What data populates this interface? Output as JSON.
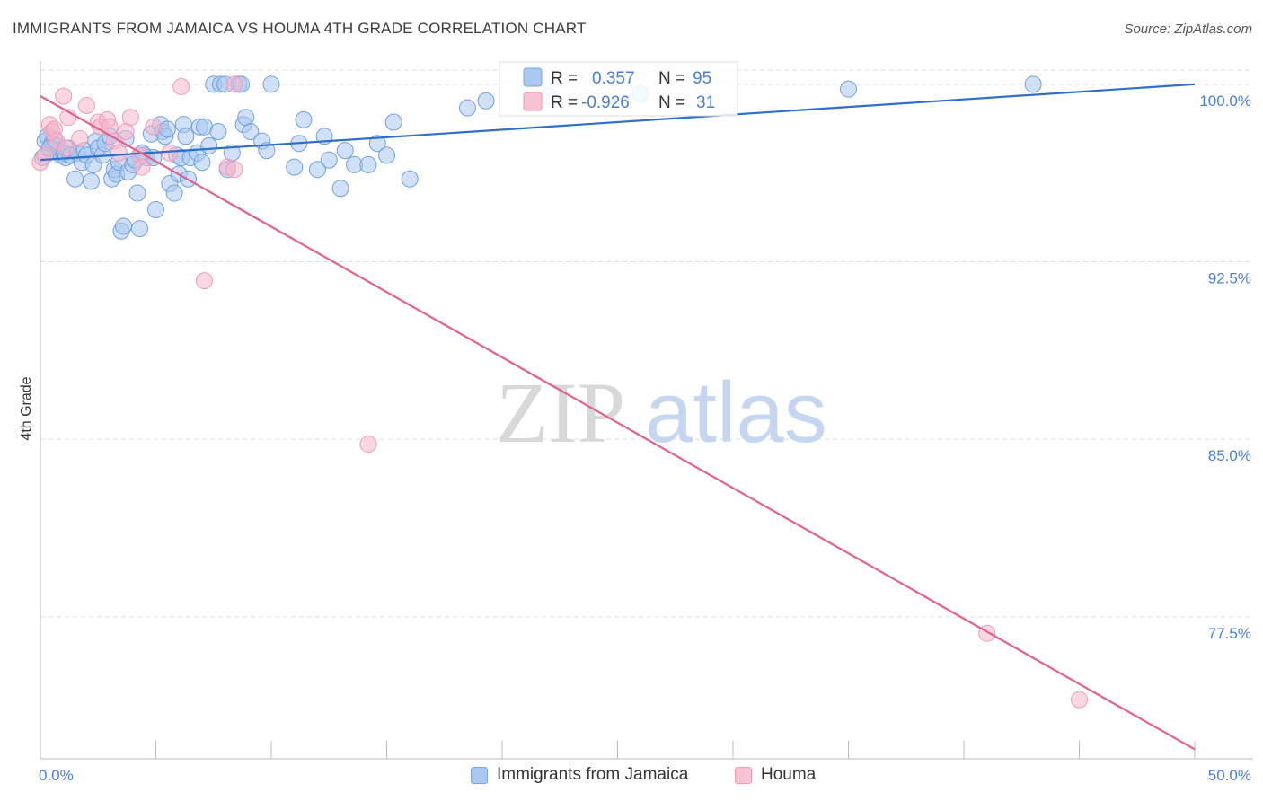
{
  "title": "IMMIGRANTS FROM JAMAICA VS HOUMA 4TH GRADE CORRELATION CHART",
  "source": "Source: ZipAtlas.com",
  "watermark": {
    "zip": "ZIP",
    "atlas": "atlas"
  },
  "colors": {
    "blue": "#4a7fd0",
    "blue_fill": "#aac8f0",
    "blue_line": "#2f6fc9",
    "pink_fill": "#f6b6cc",
    "pink_line": "#e0608e",
    "grid": "#dddddd"
  },
  "legend": {
    "r_label": "R =",
    "n_label": "N =",
    "rows": [
      {
        "r": "0.357",
        "n": "95"
      },
      {
        "r": "-0.926",
        "n": "31"
      }
    ]
  },
  "bottom_legend": {
    "blue": "Immigrants from Jamaica",
    "pink": "Houma"
  },
  "chart_data": {
    "type": "scatter",
    "xlabel": "",
    "ylabel": "4th Grade",
    "xlim": [
      0,
      50
    ],
    "ylim": [
      71.5,
      100.6
    ],
    "x_tick_labels": [
      "0.0%",
      "50.0%"
    ],
    "y_ticks": [
      100.0,
      92.5,
      85.0,
      77.5
    ],
    "y_tick_labels": [
      "100.0%",
      "92.5%",
      "85.0%",
      "77.5%"
    ],
    "grid": true,
    "series": [
      {
        "name": "Immigrants from Jamaica",
        "trend": {
          "x": [
            0,
            50
          ],
          "y": [
            96.8,
            100.0
          ]
        },
        "points": [
          [
            0.2,
            97.6
          ],
          [
            0.3,
            97.8
          ],
          [
            0.5,
            97.5
          ],
          [
            0.6,
            97.7
          ],
          [
            0.7,
            97.4
          ],
          [
            0.8,
            97.2
          ],
          [
            0.9,
            97.0
          ],
          [
            1.0,
            97.1
          ],
          [
            1.1,
            96.9
          ],
          [
            1.2,
            97.3
          ],
          [
            1.3,
            97.0
          ],
          [
            1.5,
            96.0
          ],
          [
            1.6,
            97.1
          ],
          [
            1.8,
            96.7
          ],
          [
            1.9,
            97.2
          ],
          [
            2.0,
            97.0
          ],
          [
            2.2,
            95.9
          ],
          [
            2.3,
            96.6
          ],
          [
            2.4,
            97.6
          ],
          [
            2.5,
            97.3
          ],
          [
            2.7,
            97.0
          ],
          [
            2.8,
            97.5
          ],
          [
            3.0,
            97.8
          ],
          [
            3.1,
            96.0
          ],
          [
            3.2,
            96.4
          ],
          [
            3.3,
            96.2
          ],
          [
            3.4,
            96.7
          ],
          [
            3.5,
            93.8
          ],
          [
            3.6,
            94.0
          ],
          [
            3.7,
            97.7
          ],
          [
            3.8,
            96.3
          ],
          [
            4.0,
            96.6
          ],
          [
            4.1,
            96.8
          ],
          [
            4.2,
            95.4
          ],
          [
            4.3,
            93.9
          ],
          [
            4.5,
            97.0
          ],
          [
            4.6,
            96.9
          ],
          [
            4.8,
            97.9
          ],
          [
            4.9,
            96.9
          ],
          [
            5.0,
            94.7
          ],
          [
            5.2,
            98.3
          ],
          [
            5.3,
            98.0
          ],
          [
            5.4,
            97.8
          ],
          [
            5.5,
            98.1
          ],
          [
            5.6,
            95.8
          ],
          [
            5.8,
            95.4
          ],
          [
            5.9,
            97.0
          ],
          [
            6.0,
            96.2
          ],
          [
            6.1,
            96.9
          ],
          [
            6.2,
            98.3
          ],
          [
            6.3,
            97.8
          ],
          [
            6.4,
            96.0
          ],
          [
            6.5,
            96.9
          ],
          [
            6.8,
            97.1
          ],
          [
            6.9,
            98.2
          ],
          [
            7.0,
            96.7
          ],
          [
            7.1,
            98.2
          ],
          [
            7.3,
            97.4
          ],
          [
            7.5,
            100.0
          ],
          [
            7.7,
            98.0
          ],
          [
            7.8,
            100.0
          ],
          [
            8.0,
            100.0
          ],
          [
            8.1,
            96.4
          ],
          [
            8.3,
            97.1
          ],
          [
            8.6,
            100.0
          ],
          [
            8.7,
            100.0
          ],
          [
            8.8,
            98.3
          ],
          [
            8.9,
            98.6
          ],
          [
            9.1,
            98.0
          ],
          [
            9.6,
            97.6
          ],
          [
            9.8,
            97.2
          ],
          [
            10.0,
            100.0
          ],
          [
            11.0,
            96.5
          ],
          [
            11.2,
            97.5
          ],
          [
            11.4,
            98.5
          ],
          [
            12.0,
            96.4
          ],
          [
            12.3,
            97.8
          ],
          [
            12.5,
            96.8
          ],
          [
            13.0,
            95.6
          ],
          [
            13.2,
            97.2
          ],
          [
            13.6,
            96.6
          ],
          [
            14.2,
            96.6
          ],
          [
            14.6,
            97.5
          ],
          [
            15.0,
            97.0
          ],
          [
            15.3,
            98.4
          ],
          [
            16.0,
            96.0
          ],
          [
            18.5,
            99.0
          ],
          [
            19.3,
            99.3
          ],
          [
            22.0,
            99.5
          ],
          [
            26.0,
            99.6
          ],
          [
            35.0,
            99.8
          ],
          [
            43.0,
            100.0
          ],
          [
            0.1,
            96.9
          ],
          [
            0.4,
            97.3
          ],
          [
            4.4,
            97.1
          ]
        ]
      },
      {
        "name": "Houma",
        "trend": {
          "x": [
            0,
            50
          ],
          "y": [
            99.5,
            71.9
          ]
        },
        "points": [
          [
            0.0,
            96.7
          ],
          [
            0.2,
            97.0
          ],
          [
            0.4,
            98.3
          ],
          [
            0.5,
            98.0
          ],
          [
            0.6,
            98.1
          ],
          [
            0.7,
            97.6
          ],
          [
            1.0,
            99.5
          ],
          [
            1.1,
            97.3
          ],
          [
            1.2,
            98.6
          ],
          [
            1.7,
            97.7
          ],
          [
            2.0,
            99.1
          ],
          [
            2.5,
            98.4
          ],
          [
            2.6,
            98.2
          ],
          [
            2.9,
            98.5
          ],
          [
            3.0,
            98.2
          ],
          [
            3.2,
            97.6
          ],
          [
            3.4,
            97.1
          ],
          [
            3.7,
            98.0
          ],
          [
            3.9,
            98.6
          ],
          [
            4.3,
            97.0
          ],
          [
            4.4,
            96.5
          ],
          [
            4.9,
            98.2
          ],
          [
            5.6,
            97.1
          ],
          [
            6.1,
            99.9
          ],
          [
            7.1,
            91.7
          ],
          [
            8.1,
            96.5
          ],
          [
            8.4,
            96.4
          ],
          [
            8.4,
            100.0
          ],
          [
            14.2,
            84.8
          ],
          [
            41.0,
            76.8
          ],
          [
            45.0,
            74.0
          ]
        ]
      }
    ]
  }
}
